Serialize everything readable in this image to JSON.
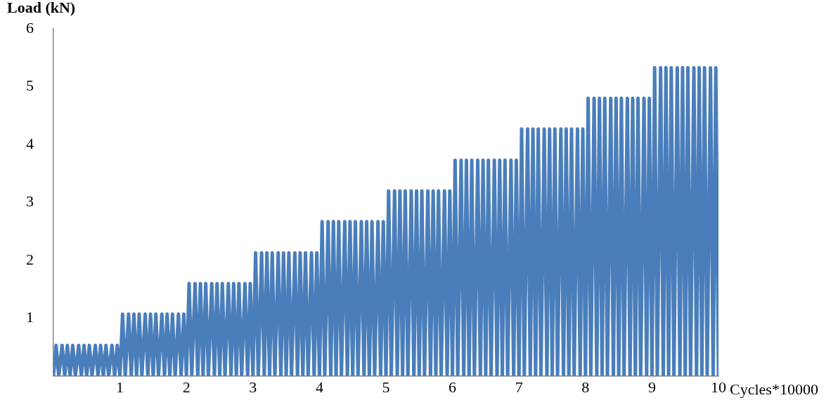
{
  "chart_data": {
    "type": "line",
    "ylabel": "Load (kN)",
    "xlabel": "Cycles*10000",
    "xlim": [
      0,
      10
    ],
    "xticks": [
      1,
      2,
      3,
      4,
      5,
      6,
      7,
      8,
      9,
      10
    ],
    "ylim": [
      0,
      6
    ],
    "yticks": [
      1,
      2,
      3,
      4,
      5,
      6
    ],
    "grid": false,
    "series": [
      {
        "color": "#4a7ebb",
        "x": [
          0,
          0.04,
          0.08,
          0.13,
          0.17,
          0.21,
          0.25,
          0.29,
          0.33,
          0.38,
          0.42,
          0.46,
          0.5,
          0.54,
          0.58,
          0.63,
          0.67,
          0.71,
          0.75,
          0.79,
          0.83,
          0.88,
          0.92,
          0.96,
          1,
          1.04,
          1.08,
          1.13,
          1.17,
          1.21,
          1.25,
          1.29,
          1.33,
          1.38,
          1.42,
          1.46,
          1.5,
          1.54,
          1.58,
          1.63,
          1.67,
          1.71,
          1.75,
          1.79,
          1.83,
          1.88,
          1.92,
          1.96,
          2,
          2.04,
          2.08,
          2.13,
          2.17,
          2.21,
          2.25,
          2.29,
          2.33,
          2.38,
          2.42,
          2.46,
          2.5,
          2.54,
          2.58,
          2.63,
          2.67,
          2.71,
          2.75,
          2.79,
          2.83,
          2.88,
          2.92,
          2.96,
          3,
          3.04,
          3.08,
          3.13,
          3.17,
          3.21,
          3.25,
          3.29,
          3.33,
          3.38,
          3.42,
          3.46,
          3.5,
          3.54,
          3.58,
          3.63,
          3.67,
          3.71,
          3.75,
          3.79,
          3.83,
          3.88,
          3.92,
          3.96,
          4,
          4.04,
          4.08,
          4.13,
          4.17,
          4.21,
          4.25,
          4.29,
          4.33,
          4.38,
          4.42,
          4.46,
          4.5,
          4.54,
          4.58,
          4.63,
          4.67,
          4.71,
          4.75,
          4.79,
          4.83,
          4.88,
          4.92,
          4.96,
          5,
          5.04,
          5.08,
          5.13,
          5.17,
          5.21,
          5.25,
          5.29,
          5.33,
          5.38,
          5.42,
          5.46,
          5.5,
          5.54,
          5.58,
          5.63,
          5.67,
          5.71,
          5.75,
          5.79,
          5.83,
          5.88,
          5.92,
          5.96,
          6,
          6.04,
          6.08,
          6.13,
          6.17,
          6.21,
          6.25,
          6.29,
          6.33,
          6.38,
          6.42,
          6.46,
          6.5,
          6.54,
          6.58,
          6.63,
          6.67,
          6.71,
          6.75,
          6.79,
          6.83,
          6.88,
          6.92,
          6.96,
          7,
          7.04,
          7.08,
          7.13,
          7.17,
          7.21,
          7.25,
          7.29,
          7.33,
          7.38,
          7.42,
          7.46,
          7.5,
          7.54,
          7.58,
          7.63,
          7.67,
          7.71,
          7.75,
          7.79,
          7.83,
          7.88,
          7.92,
          7.96,
          8,
          8.04,
          8.08,
          8.13,
          8.17,
          8.21,
          8.25,
          8.29,
          8.33,
          8.38,
          8.42,
          8.46,
          8.5,
          8.54,
          8.58,
          8.63,
          8.67,
          8.71,
          8.75,
          8.79,
          8.83,
          8.88,
          8.92,
          8.96,
          9,
          9.04,
          9.08,
          9.13,
          9.17,
          9.21,
          9.25,
          9.29,
          9.33,
          9.38,
          9.42,
          9.46,
          9.5,
          9.54,
          9.58,
          9.63,
          9.67,
          9.71,
          9.75,
          9.79,
          9.83,
          9.88,
          9.92,
          9.96,
          10
        ],
        "values": [
          0,
          0.53,
          0,
          0.53,
          0,
          0.53,
          0,
          0.53,
          0,
          0.53,
          0,
          0.53,
          0,
          0.53,
          0,
          0.53,
          0,
          0.53,
          0,
          0.53,
          0,
          0.53,
          0,
          0.53,
          0,
          1.07,
          0,
          1.07,
          0,
          1.07,
          0,
          1.07,
          0,
          1.07,
          0,
          1.07,
          0,
          1.07,
          0,
          1.07,
          0,
          1.07,
          0,
          1.07,
          0,
          1.07,
          0,
          1.07,
          0,
          1.6,
          0,
          1.6,
          0,
          1.6,
          0,
          1.6,
          0,
          1.6,
          0,
          1.6,
          0,
          1.6,
          0,
          1.6,
          0,
          1.6,
          0,
          1.6,
          0,
          1.6,
          0,
          1.6,
          0,
          2.13,
          0,
          2.13,
          0,
          2.13,
          0,
          2.13,
          0,
          2.13,
          0,
          2.13,
          0,
          2.13,
          0,
          2.13,
          0,
          2.13,
          0,
          2.13,
          0,
          2.13,
          0,
          2.13,
          0,
          2.67,
          0,
          2.67,
          0,
          2.67,
          0,
          2.67,
          0,
          2.67,
          0,
          2.67,
          0,
          2.67,
          0,
          2.67,
          0,
          2.67,
          0,
          2.67,
          0,
          2.67,
          0,
          2.67,
          0,
          3.2,
          0,
          3.2,
          0,
          3.2,
          0,
          3.2,
          0,
          3.2,
          0,
          3.2,
          0,
          3.2,
          0,
          3.2,
          0,
          3.2,
          0,
          3.2,
          0,
          3.2,
          0,
          3.2,
          0,
          3.73,
          0,
          3.73,
          0,
          3.73,
          0,
          3.73,
          0,
          3.73,
          0,
          3.73,
          0,
          3.73,
          0,
          3.73,
          0,
          3.73,
          0,
          3.73,
          0,
          3.73,
          0,
          3.73,
          0,
          4.27,
          0,
          4.27,
          0,
          4.27,
          0,
          4.27,
          0,
          4.27,
          0,
          4.27,
          0,
          4.27,
          0,
          4.27,
          0,
          4.27,
          0,
          4.27,
          0,
          4.27,
          0,
          4.27,
          0,
          4.8,
          0,
          4.8,
          0,
          4.8,
          0,
          4.8,
          0,
          4.8,
          0,
          4.8,
          0,
          4.8,
          0,
          4.8,
          0,
          4.8,
          0,
          4.8,
          0,
          4.8,
          0,
          4.8,
          0,
          5.33,
          0,
          5.33,
          0,
          5.33,
          0,
          5.33,
          0,
          5.33,
          0,
          5.33,
          0,
          5.33,
          0,
          5.33,
          0,
          5.33,
          0,
          5.33,
          0,
          5.33,
          0,
          5.33,
          0
        ]
      }
    ]
  }
}
